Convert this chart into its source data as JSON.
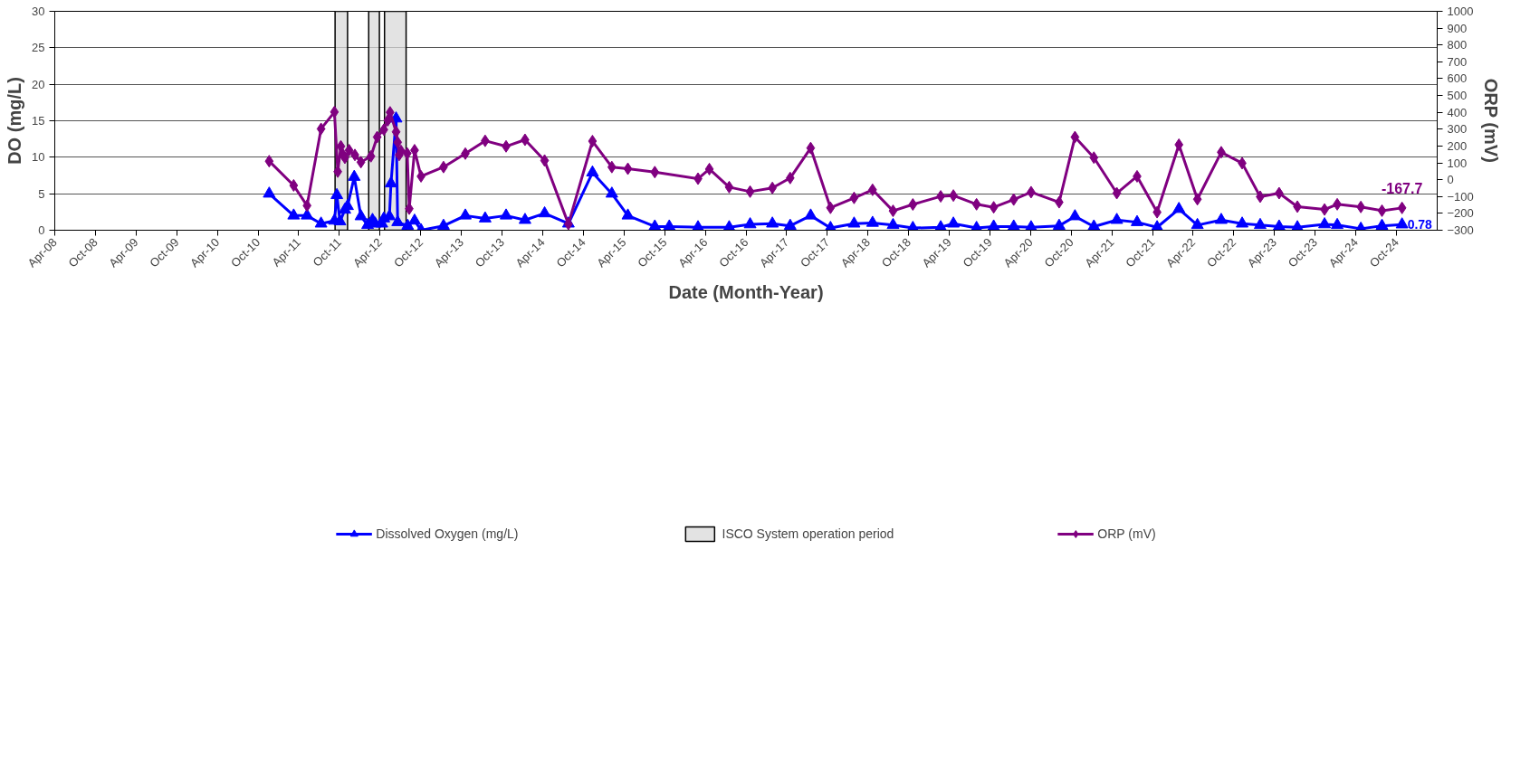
{
  "chart_data": {
    "type": "line",
    "xlabel": "Date (Month-Year)",
    "ylabel": "DO (mg/L)",
    "y2label": "ORP (mV)",
    "xlim": [
      "2008-04-01",
      "2025-04-01"
    ],
    "xticks": [
      {
        "value": "2008-04-01",
        "label": "Apr-08"
      },
      {
        "value": "2008-10-01",
        "label": "Oct-08"
      },
      {
        "value": "2009-04-01",
        "label": "Apr-09"
      },
      {
        "value": "2009-10-01",
        "label": "Oct-09"
      },
      {
        "value": "2010-04-01",
        "label": "Apr-10"
      },
      {
        "value": "2010-10-01",
        "label": "Oct-10"
      },
      {
        "value": "2011-04-01",
        "label": "Apr-11"
      },
      {
        "value": "2011-10-01",
        "label": "Oct-11"
      },
      {
        "value": "2012-04-01",
        "label": "Apr-12"
      },
      {
        "value": "2012-10-01",
        "label": "Oct-12"
      },
      {
        "value": "2013-04-01",
        "label": "Apr-13"
      },
      {
        "value": "2013-10-01",
        "label": "Oct-13"
      },
      {
        "value": "2014-04-01",
        "label": "Apr-14"
      },
      {
        "value": "2014-10-01",
        "label": "Oct-14"
      },
      {
        "value": "2015-04-01",
        "label": "Apr-15"
      },
      {
        "value": "2015-10-01",
        "label": "Oct-15"
      },
      {
        "value": "2016-04-01",
        "label": "Apr-16"
      },
      {
        "value": "2016-10-01",
        "label": "Oct-16"
      },
      {
        "value": "2017-04-01",
        "label": "Apr-17"
      },
      {
        "value": "2017-10-01",
        "label": "Oct-17"
      },
      {
        "value": "2018-04-01",
        "label": "Apr-18"
      },
      {
        "value": "2018-10-01",
        "label": "Oct-18"
      },
      {
        "value": "2019-04-01",
        "label": "Apr-19"
      },
      {
        "value": "2019-10-01",
        "label": "Oct-19"
      },
      {
        "value": "2020-04-01",
        "label": "Apr-20"
      },
      {
        "value": "2020-10-01",
        "label": "Oct-20"
      },
      {
        "value": "2021-04-01",
        "label": "Apr-21"
      },
      {
        "value": "2021-10-01",
        "label": "Oct-21"
      },
      {
        "value": "2022-04-01",
        "label": "Apr-22"
      },
      {
        "value": "2022-10-01",
        "label": "Oct-22"
      },
      {
        "value": "2023-04-01",
        "label": "Apr-23"
      },
      {
        "value": "2023-10-01",
        "label": "Oct-23"
      },
      {
        "value": "2024-04-01",
        "label": "Apr-24"
      },
      {
        "value": "2024-10-01",
        "label": "Oct-24"
      }
    ],
    "ylim": [
      0,
      30
    ],
    "yticks": [
      0,
      5,
      10,
      15,
      20,
      25,
      30
    ],
    "y2lim": [
      -300,
      1000
    ],
    "y2ticks": [
      -300,
      -200,
      -100,
      0,
      100,
      200,
      300,
      400,
      500,
      600,
      700,
      800,
      900,
      1000
    ],
    "grid": "y",
    "legend": "bottom",
    "line_style": "solid",
    "bands": [
      {
        "axis": "x",
        "from": "2011-09-12",
        "to": "2011-11-07",
        "label": "ISCO System operation period",
        "color": "#d9d9d9"
      },
      {
        "axis": "x",
        "from": "2012-02-10",
        "to": "2012-03-29",
        "color": "#d9d9d9"
      },
      {
        "axis": "x",
        "from": "2012-04-21",
        "to": "2012-07-27",
        "color": "#d9d9d9"
      }
    ],
    "series": [
      {
        "name": "Dissolved Oxygen (mg/L)",
        "color": "#0000ff",
        "marker": "triangle",
        "x": [
          "2010-11-20",
          "2011-03-10",
          "2011-05-09",
          "2011-07-11",
          "2011-09-09",
          "2011-09-20",
          "2011-10-04",
          "2011-10-26",
          "2011-11-07",
          "2011-12-07",
          "2012-01-06",
          "2012-02-05",
          "2012-02-27",
          "2012-03-10",
          "2012-04-09",
          "2012-04-18",
          "2012-05-13",
          "2012-05-20",
          "2012-06-12",
          "2012-06-19",
          "2012-08-03",
          "2012-09-03",
          "2012-10-02",
          "2013-01-11",
          "2013-04-19",
          "2013-07-17",
          "2013-10-19",
          "2014-01-12",
          "2014-04-10",
          "2014-07-26",
          "2014-11-11",
          "2015-02-06",
          "2015-04-19",
          "2015-08-18",
          "2015-10-22",
          "2016-02-28",
          "2016-07-17",
          "2016-10-19",
          "2017-01-27",
          "2017-04-17",
          "2017-07-18",
          "2017-10-15",
          "2018-01-29",
          "2018-04-22",
          "2018-07-23",
          "2018-10-20",
          "2019-02-22",
          "2019-04-20",
          "2019-08-02",
          "2019-10-18",
          "2020-01-16",
          "2020-04-03",
          "2020-08-07",
          "2020-10-17",
          "2021-01-10",
          "2021-04-23",
          "2021-07-23",
          "2021-10-21",
          "2022-01-27",
          "2022-04-20",
          "2022-08-05",
          "2022-11-07",
          "2023-01-27",
          "2023-04-22",
          "2023-07-13",
          "2023-11-12",
          "2024-01-08",
          "2024-04-23",
          "2024-07-27",
          "2024-10-25"
        ],
        "values": [
          5.0,
          2.0,
          2.0,
          0.9,
          1.3,
          4.8,
          1.2,
          2.8,
          3.3,
          7.3,
          1.9,
          0.7,
          1.4,
          0.9,
          0.9,
          1.6,
          1.9,
          6.4,
          15.3,
          1.1,
          0.6,
          1.3,
          0.0,
          0.6,
          2.0,
          1.6,
          2.0,
          1.4,
          2.3,
          0.9,
          7.9,
          5.0,
          2.0,
          0.5,
          0.5,
          0.4,
          0.4,
          0.8,
          0.9,
          0.6,
          2.0,
          0.3,
          0.9,
          1.0,
          0.7,
          0.3,
          0.4,
          0.9,
          0.3,
          0.5,
          0.5,
          0.4,
          0.6,
          1.9,
          0.5,
          1.4,
          1.1,
          0.4,
          2.9,
          0.7,
          1.4,
          0.9,
          0.7,
          0.5,
          0.4,
          0.8,
          0.7,
          0.2,
          0.6,
          0.78
        ],
        "value_labels": [
          null,
          null,
          null,
          null,
          null,
          null,
          null,
          null,
          null,
          null,
          null,
          null,
          null,
          null,
          null,
          null,
          null,
          null,
          null,
          null,
          null,
          null,
          null,
          null,
          null,
          null,
          null,
          null,
          null,
          null,
          null,
          null,
          null,
          null,
          null,
          null,
          null,
          null,
          null,
          null,
          null,
          null,
          null,
          null,
          null,
          null,
          null,
          null,
          null,
          null,
          null,
          null,
          null,
          null,
          null,
          null,
          null,
          null,
          null,
          null,
          null,
          null,
          null,
          null,
          null,
          null,
          null,
          null,
          null,
          "0.78"
        ]
      },
      {
        "name": "ORP (mV)",
        "color": "#800080",
        "marker": "diamond",
        "axis": "y2",
        "x": [
          "2010-11-20",
          "2011-03-10",
          "2011-05-09",
          "2011-07-11",
          "2011-09-09",
          "2011-09-24",
          "2011-10-08",
          "2011-10-17",
          "2011-10-26",
          "2011-11-14",
          "2011-12-10",
          "2012-01-06",
          "2012-02-20",
          "2012-03-19",
          "2012-04-18",
          "2012-05-06",
          "2012-05-16",
          "2012-06-12",
          "2012-06-19",
          "2012-06-26",
          "2012-07-04",
          "2012-08-01",
          "2012-08-10",
          "2012-09-03",
          "2012-10-02",
          "2013-01-11",
          "2013-04-19",
          "2013-07-17",
          "2013-10-19",
          "2014-01-12",
          "2014-04-10",
          "2014-07-26",
          "2014-11-11",
          "2015-02-06",
          "2015-04-19",
          "2015-08-18",
          "2016-02-28",
          "2016-04-19",
          "2016-07-17",
          "2016-10-19",
          "2017-01-27",
          "2017-04-17",
          "2017-07-18",
          "2017-10-15",
          "2018-01-29",
          "2018-04-22",
          "2018-07-23",
          "2018-10-20",
          "2019-02-22",
          "2019-04-20",
          "2019-08-02",
          "2019-10-18",
          "2020-01-16",
          "2020-04-03",
          "2020-08-07",
          "2020-10-17",
          "2021-01-10",
          "2021-04-23",
          "2021-07-23",
          "2021-10-21",
          "2022-01-27",
          "2022-04-20",
          "2022-08-05",
          "2022-11-07",
          "2023-01-27",
          "2023-04-22",
          "2023-07-13",
          "2023-11-12",
          "2024-01-08",
          "2024-04-23",
          "2024-07-27",
          "2024-10-25"
        ],
        "values": [
          110,
          -34,
          -154,
          302,
          402,
          48,
          198,
          150,
          130,
          175,
          147,
          104,
          139,
          253,
          297,
          353,
          400,
          284,
          222,
          147,
          171,
          156,
          -172,
          175,
          20,
          75,
          155,
          231,
          198,
          237,
          114,
          -263,
          229,
          75,
          65,
          45,
          6,
          63,
          -44,
          -71,
          -49,
          10,
          188,
          -167,
          -108,
          -60,
          -185,
          -147,
          -99,
          -94,
          -146,
          -164,
          -118,
          -74,
          -134,
          253,
          131,
          -80,
          20,
          -193,
          208,
          -116,
          163,
          98,
          -101,
          -80,
          -160,
          -177,
          -146,
          -162,
          -184,
          -167.7
        ],
        "value_labels": [
          null,
          null,
          null,
          null,
          null,
          null,
          null,
          null,
          null,
          null,
          null,
          null,
          null,
          null,
          null,
          null,
          null,
          null,
          null,
          null,
          null,
          null,
          null,
          null,
          null,
          null,
          null,
          null,
          null,
          null,
          null,
          null,
          null,
          null,
          null,
          null,
          null,
          null,
          null,
          null,
          null,
          null,
          null,
          null,
          null,
          null,
          null,
          null,
          null,
          null,
          null,
          null,
          null,
          null,
          null,
          null,
          null,
          null,
          null,
          null,
          null,
          null,
          null,
          null,
          null,
          null,
          null,
          null,
          null,
          null,
          null,
          "-167.7"
        ]
      }
    ]
  }
}
